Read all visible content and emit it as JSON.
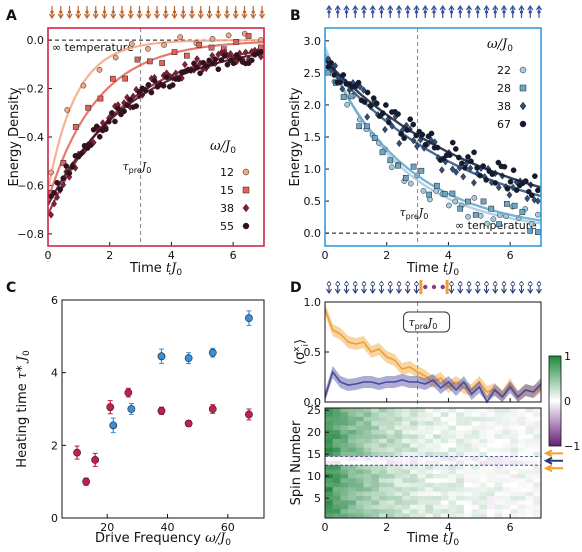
{
  "panel_labels": [
    "A",
    "B",
    "C",
    "D"
  ],
  "chart_data": [
    {
      "id": "A",
      "type": "scatter",
      "xlabel": "Time tJ₀",
      "ylabel": "Energy Density",
      "xlim": [
        0,
        7
      ],
      "ylim": [
        -0.85,
        0.05
      ],
      "xticks": [
        0,
        2,
        4,
        6
      ],
      "yticks": [
        -0.8,
        -0.6,
        -0.4,
        -0.2,
        0.0
      ],
      "tick_labels_x": [
        "0",
        "2",
        "4",
        "6"
      ],
      "tick_labels_y": [
        "−0.8",
        "−0.6",
        "−0.4",
        "−0.2",
        "0.0"
      ],
      "frame_color": "#d0264c",
      "reference_line": {
        "y": 0.0,
        "label": "∞ temperature"
      },
      "vline": {
        "x": 3.0,
        "label": "τpre J₀"
      },
      "legend_title": "ω/J₀",
      "legend_placement": "bottom-right",
      "series": [
        {
          "name": "12",
          "marker": "circle",
          "color": "#f4a582",
          "y0": -0.62,
          "rate": 1.1,
          "noise": 0.03,
          "n": 14
        },
        {
          "name": "15",
          "marker": "square",
          "color": "#e06353",
          "y0": -0.66,
          "rate": 0.62,
          "noise": 0.03,
          "n": 18
        },
        {
          "name": "38",
          "marker": "diamond",
          "color": "#8e1b35",
          "y0": -0.72,
          "rate": 0.4,
          "noise": 0.03,
          "n": 70
        },
        {
          "name": "55",
          "marker": "circle",
          "color": "#3a0d1e",
          "y0": -0.68,
          "rate": 0.36,
          "noise": 0.03,
          "n": 70
        }
      ]
    },
    {
      "id": "B",
      "type": "scatter",
      "xlabel": "Time tJ₀",
      "ylabel": "Energy Density",
      "xlim": [
        0,
        7
      ],
      "ylim": [
        -0.2,
        3.2
      ],
      "xticks": [
        0,
        2,
        4,
        6
      ],
      "yticks": [
        0.0,
        0.5,
        1.0,
        1.5,
        2.0,
        2.5,
        3.0
      ],
      "tick_labels_x": [
        "0",
        "2",
        "4",
        "6"
      ],
      "tick_labels_y": [
        "0.0",
        "0.5",
        "1.0",
        "1.5",
        "2.0",
        "2.5",
        "3.0"
      ],
      "frame_color": "#3a9ad9",
      "reference_line": {
        "y": 0.0,
        "label": "∞ temperature"
      },
      "vline": {
        "x": 3.0,
        "label": "τpre J₀"
      },
      "legend_title": "ω/J₀",
      "legend_placement": "top-right",
      "series": [
        {
          "name": "22",
          "marker": "circle",
          "color": "#9fcbe3",
          "y0": 2.9,
          "rate": 0.42,
          "noise": 0.12,
          "n": 34
        },
        {
          "name": "28",
          "marker": "square",
          "color": "#6aa6c8",
          "y0": 2.8,
          "rate": 0.38,
          "noise": 0.12,
          "n": 28
        },
        {
          "name": "38",
          "marker": "diamond",
          "color": "#2e4f7c",
          "y0": 2.7,
          "rate": 0.22,
          "noise": 0.12,
          "n": 60
        },
        {
          "name": "67",
          "marker": "circle",
          "color": "#101c36",
          "y0": 2.7,
          "rate": 0.19,
          "noise": 0.12,
          "n": 70
        }
      ]
    },
    {
      "id": "C",
      "type": "scatter",
      "xlabel": "Drive Frequency ω/J₀",
      "ylabel": "Heating time τ* J₀",
      "xlim": [
        5,
        72
      ],
      "ylim": [
        0,
        6
      ],
      "xticks": [
        20,
        40,
        60
      ],
      "yticks": [
        0,
        2,
        4,
        6
      ],
      "tick_labels_x": [
        "20",
        "40",
        "60"
      ],
      "tick_labels_y": [
        "0",
        "2",
        "4",
        "6"
      ],
      "series": [
        {
          "name": "",
          "color": "#c41e4a",
          "x": [
            10,
            13,
            16,
            21,
            27,
            38,
            47,
            55,
            67
          ],
          "y": [
            1.8,
            1.0,
            1.6,
            3.05,
            3.45,
            2.95,
            2.6,
            3.0,
            2.85
          ],
          "err": [
            0.18,
            0.1,
            0.18,
            0.18,
            0.12,
            0.1,
            0.08,
            0.12,
            0.15
          ]
        },
        {
          "name": "",
          "color": "#3a8fd9",
          "x": [
            22,
            28,
            38,
            47,
            55,
            67
          ],
          "y": [
            2.55,
            3.0,
            4.45,
            4.4,
            4.55,
            5.5
          ],
          "err": [
            0.2,
            0.15,
            0.2,
            0.15,
            0.12,
            0.2
          ]
        }
      ]
    },
    {
      "id": "D",
      "type": "line",
      "xlabel": "Time tJ₀",
      "ylabel": "⟨σˣᵢ⟩",
      "xlim": [
        0,
        7
      ],
      "ylim": [
        0,
        1
      ],
      "xticks": [
        0,
        2,
        4,
        6
      ],
      "yticks": [
        0.0,
        0.5,
        1.0
      ],
      "tick_labels_x": [
        "0",
        "2",
        "4",
        "6"
      ],
      "tick_labels_y": [
        "0.0",
        "0.5",
        "1.0"
      ],
      "vline": {
        "x": 3.0,
        "label": "τpre J₀"
      },
      "series": [
        {
          "name": "",
          "color": "#f0a030",
          "x": [
            0,
            0.25,
            0.5,
            0.75,
            1.0,
            1.25,
            1.5,
            1.75,
            2.0,
            2.25,
            2.5,
            2.75,
            3.0,
            3.25,
            3.5,
            3.75,
            4.0,
            4.25,
            4.5,
            4.75,
            5.0,
            5.25,
            5.5,
            5.75,
            6.0,
            6.25,
            6.5,
            6.75,
            7.0
          ],
          "y": [
            0.93,
            0.72,
            0.68,
            0.6,
            0.58,
            0.6,
            0.5,
            0.53,
            0.45,
            0.42,
            0.33,
            0.35,
            0.3,
            0.26,
            0.2,
            0.24,
            0.15,
            0.2,
            0.14,
            0.12,
            0.2,
            0.1,
            0.13,
            0.06,
            0.18,
            0.05,
            0.12,
            0.1,
            0.15
          ]
        },
        {
          "name": "",
          "color": "#4a4aa0",
          "x": [
            0,
            0.25,
            0.5,
            0.75,
            1.0,
            1.25,
            1.5,
            1.75,
            2.0,
            2.25,
            2.5,
            2.75,
            3.0,
            3.25,
            3.5,
            3.75,
            4.0,
            4.25,
            4.5,
            4.75,
            5.0,
            5.25,
            5.5,
            5.75,
            6.0,
            6.25,
            6.5,
            6.75,
            7.0
          ],
          "y": [
            0.05,
            0.3,
            0.2,
            0.17,
            0.18,
            0.2,
            0.2,
            0.18,
            0.2,
            0.2,
            0.22,
            0.2,
            0.2,
            0.18,
            0.22,
            0.14,
            0.2,
            0.12,
            0.2,
            0.08,
            0.15,
            0.0,
            0.12,
            0.05,
            0.15,
            0.05,
            0.12,
            0.1,
            0.18
          ]
        }
      ],
      "heatmap": {
        "ylabel": "Spin Number",
        "ylim": [
          1,
          25
        ],
        "yticks": [
          5,
          10,
          15,
          20,
          25
        ],
        "tick_labels_y": [
          "5",
          "10",
          "15",
          "20",
          "25"
        ],
        "colorbar_ticks": [
          "1",
          "0",
          "−1"
        ],
        "colorbar_values": [
          1,
          0,
          -1
        ],
        "domain_wall_rows": [
          13,
          14
        ]
      }
    }
  ]
}
